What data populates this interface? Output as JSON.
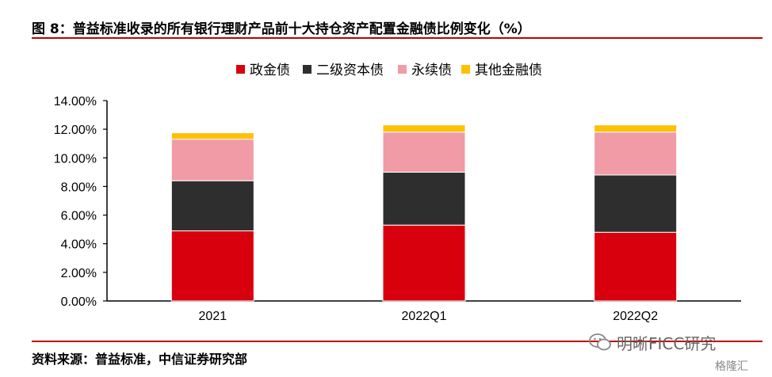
{
  "figure": {
    "title": "图 8：普益标准收录的所有银行理财产品前十大持仓资产配置金融债比例变化（%）",
    "source": "资料来源：普益标准，中信证券研究部",
    "watermark": "明晰FICC研究",
    "watermark_logo": "格隆汇"
  },
  "colors": {
    "rule": "#c00000",
    "series": [
      "#d9000d",
      "#2e2e2e",
      "#f09ba6",
      "#ffc000"
    ]
  },
  "chart_data": {
    "type": "bar",
    "stacked": true,
    "categories": [
      "2021",
      "2022Q1",
      "2022Q2"
    ],
    "series": [
      {
        "name": "政金债",
        "values": [
          4.9,
          5.3,
          4.8
        ]
      },
      {
        "name": "二级资本债",
        "values": [
          3.5,
          3.7,
          4.0
        ]
      },
      {
        "name": "永续债",
        "values": [
          2.9,
          2.8,
          3.0
        ]
      },
      {
        "name": "其他金融债",
        "values": [
          0.45,
          0.5,
          0.5
        ]
      }
    ],
    "ylim": [
      0,
      14
    ],
    "yticks": [
      "0.00%",
      "2.00%",
      "4.00%",
      "6.00%",
      "8.00%",
      "10.00%",
      "12.00%",
      "14.00%"
    ],
    "legend_position": "top-center",
    "grid": false
  }
}
